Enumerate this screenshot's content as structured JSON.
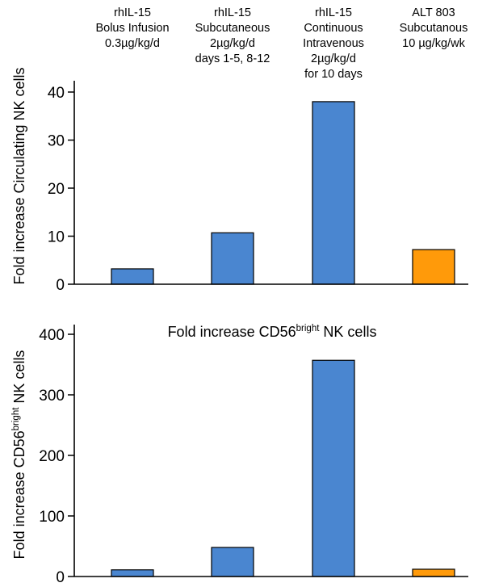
{
  "colors": {
    "blue": "#4A86D0",
    "orange": "#FF9A0A",
    "axis": "#000000"
  },
  "headers": [
    [
      "rhIL-15",
      "Bolus Infusion",
      "0.3µg/kg/d"
    ],
    [
      "rhIL-15",
      "Subcutaneous",
      "2µg/kg/d",
      "days 1-5, 8-12"
    ],
    [
      "rhIL-15",
      "Continuous",
      "Intravenous",
      "2µg/kg/d",
      "for 10 days"
    ],
    [
      "ALT 803",
      "Subcutanous",
      "10 µg/kg/wk"
    ]
  ],
  "chart_data": [
    {
      "type": "bar",
      "title": "",
      "ylabel": "Fold increase Circulating NK cells",
      "ylim": [
        0,
        40
      ],
      "yticks": [
        "0",
        "10",
        "20",
        "30",
        "40"
      ],
      "categories": [
        "rhIL-15 Bolus Infusion 0.3µg/kg/d",
        "rhIL-15 Subcutaneous 2µg/kg/d days 1-5, 8-12",
        "rhIL-15 Continuous Intravenous 2µg/kg/d for 10 days",
        "ALT 803 Subcutanous 10 µg/kg/wk"
      ],
      "values": [
        3.2,
        10.7,
        38.0,
        7.2
      ],
      "bar_colors": [
        "#4A86D0",
        "#4A86D0",
        "#4A86D0",
        "#FF9A0A"
      ]
    },
    {
      "type": "bar",
      "title": "Fold increase CD56",
      "title_sup": "bright",
      "title_suffix": " NK cells",
      "ylabel": "Fold increase CD56",
      "ylabel_sup": "bright",
      "ylabel_suffix": " NK cells",
      "ylim": [
        0,
        400
      ],
      "yticks": [
        "0",
        "100",
        "200",
        "300",
        "400"
      ],
      "categories": [
        "rhIL-15 Bolus Infusion 0.3µg/kg/d",
        "rhIL-15 Subcutaneous 2µg/kg/d days 1-5, 8-12",
        "rhIL-15 Continuous Intravenous 2µg/kg/d for 10 days",
        "ALT 803 Subcutanous 10 µg/kg/wk"
      ],
      "values": [
        11,
        48,
        357,
        12
      ],
      "bar_colors": [
        "#4A86D0",
        "#4A86D0",
        "#4A86D0",
        "#FF9A0A"
      ]
    }
  ]
}
